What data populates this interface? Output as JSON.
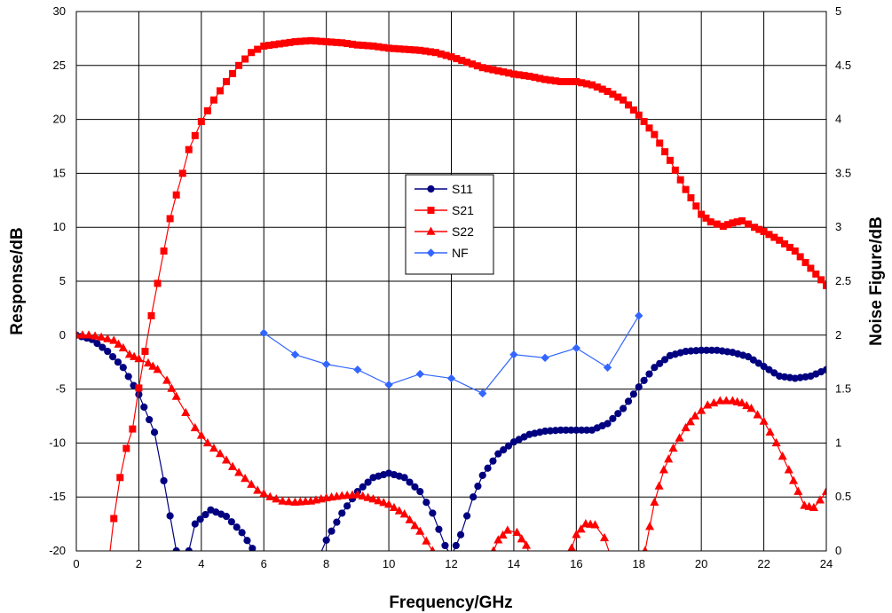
{
  "chart_data": {
    "type": "line",
    "title": "",
    "xlabel": "Frequency/GHz",
    "ylabel": "Response/dB",
    "y2label": "Noise Figure/dB",
    "xlim": [
      0,
      24
    ],
    "ylim": [
      -20,
      30
    ],
    "y2lim": [
      0,
      5
    ],
    "x_ticks": [
      "0",
      "2",
      "4",
      "6",
      "8",
      "10",
      "12",
      "14",
      "16",
      "18",
      "20",
      "22",
      "24"
    ],
    "y_ticks": [
      "-20",
      "-15",
      "-10",
      "-5",
      "0",
      "5",
      "10",
      "15",
      "20",
      "25",
      "30"
    ],
    "y2_ticks": [
      "0",
      "0.5",
      "1",
      "1.5",
      "2",
      "2.5",
      "3",
      "3.5",
      "4",
      "4.5",
      "5"
    ],
    "grid": true,
    "legend_position": "center",
    "series": [
      {
        "name": "S11",
        "axis": "left",
        "color": "#000080",
        "marker": "circle",
        "points": [
          [
            0,
            0
          ],
          [
            0.5,
            -0.4
          ],
          [
            1,
            -1.5
          ],
          [
            1.5,
            -3
          ],
          [
            2,
            -5.5
          ],
          [
            2.5,
            -9
          ],
          [
            2.8,
            -13.5
          ],
          [
            3.2,
            -20
          ],
          [
            3.3,
            -22
          ],
          [
            3.6,
            -20
          ],
          [
            3.8,
            -17.5
          ],
          [
            4.3,
            -16.2
          ],
          [
            4.8,
            -16.8
          ],
          [
            5.3,
            -18.3
          ],
          [
            5.8,
            -20.5
          ],
          [
            7.7,
            -21
          ],
          [
            8,
            -19
          ],
          [
            8.5,
            -16.5
          ],
          [
            9,
            -14.5
          ],
          [
            9.5,
            -13.2
          ],
          [
            10,
            -12.8
          ],
          [
            10.5,
            -13.2
          ],
          [
            11,
            -14.5
          ],
          [
            11.4,
            -16.5
          ],
          [
            11.8,
            -19.5
          ],
          [
            12,
            -20.5
          ],
          [
            12.3,
            -18.5
          ],
          [
            12.7,
            -15
          ],
          [
            13,
            -13
          ],
          [
            13.5,
            -11
          ],
          [
            14,
            -9.9
          ],
          [
            14.5,
            -9.2
          ],
          [
            15,
            -8.9
          ],
          [
            15.5,
            -8.8
          ],
          [
            16,
            -8.8
          ],
          [
            16.5,
            -8.8
          ],
          [
            17,
            -8.2
          ],
          [
            17.5,
            -6.8
          ],
          [
            18,
            -4.8
          ],
          [
            18.5,
            -3
          ],
          [
            19,
            -1.9
          ],
          [
            19.5,
            -1.5
          ],
          [
            20,
            -1.4
          ],
          [
            20.5,
            -1.4
          ],
          [
            21,
            -1.6
          ],
          [
            21.5,
            -2
          ],
          [
            22,
            -2.9
          ],
          [
            22.5,
            -3.8
          ],
          [
            23,
            -4
          ],
          [
            23.5,
            -3.8
          ],
          [
            24,
            -3.2
          ]
        ]
      },
      {
        "name": "S21",
        "axis": "left",
        "color": "#FF0000",
        "marker": "square",
        "points": [
          [
            1,
            -22
          ],
          [
            1.2,
            -17
          ],
          [
            1.4,
            -13.2
          ],
          [
            1.6,
            -10.5
          ],
          [
            1.8,
            -8.7
          ],
          [
            2,
            -4.9
          ],
          [
            2.2,
            -1.5
          ],
          [
            2.4,
            1.8
          ],
          [
            2.6,
            4.8
          ],
          [
            2.8,
            7.8
          ],
          [
            3,
            10.8
          ],
          [
            3.2,
            13
          ],
          [
            3.4,
            15
          ],
          [
            3.6,
            17.2
          ],
          [
            3.8,
            18.5
          ],
          [
            4,
            19.8
          ],
          [
            4.4,
            21.8
          ],
          [
            4.8,
            23.5
          ],
          [
            5.2,
            25
          ],
          [
            5.6,
            26.2
          ],
          [
            6,
            26.8
          ],
          [
            6.5,
            27
          ],
          [
            7,
            27.2
          ],
          [
            7.5,
            27.3
          ],
          [
            8,
            27.2
          ],
          [
            8.5,
            27.1
          ],
          [
            9,
            26.9
          ],
          [
            9.5,
            26.8
          ],
          [
            10,
            26.6
          ],
          [
            10.5,
            26.5
          ],
          [
            11,
            26.4
          ],
          [
            11.5,
            26.2
          ],
          [
            12,
            25.8
          ],
          [
            12.5,
            25.3
          ],
          [
            13,
            24.8
          ],
          [
            13.5,
            24.5
          ],
          [
            14,
            24.2
          ],
          [
            14.5,
            24
          ],
          [
            15,
            23.7
          ],
          [
            15.5,
            23.5
          ],
          [
            16,
            23.5
          ],
          [
            16.5,
            23.2
          ],
          [
            17,
            22.6
          ],
          [
            17.5,
            21.8
          ],
          [
            18,
            20.4
          ],
          [
            18.5,
            18.6
          ],
          [
            19,
            16.2
          ],
          [
            19.5,
            13.5
          ],
          [
            20,
            11.2
          ],
          [
            20.3,
            10.5
          ],
          [
            20.7,
            10.1
          ],
          [
            21,
            10.4
          ],
          [
            21.3,
            10.6
          ],
          [
            21.7,
            10
          ],
          [
            22,
            9.6
          ],
          [
            22.5,
            8.8
          ],
          [
            23,
            7.8
          ],
          [
            23.5,
            6.2
          ],
          [
            24,
            4.6
          ]
        ]
      },
      {
        "name": "S22",
        "axis": "left",
        "color": "#FF0000",
        "marker": "triangle",
        "points": [
          [
            0,
            0
          ],
          [
            0.4,
            0
          ],
          [
            0.8,
            -0.2
          ],
          [
            1.2,
            -0.5
          ],
          [
            1.5,
            -1.2
          ],
          [
            1.7,
            -1.8
          ],
          [
            2,
            -2.2
          ],
          [
            2.3,
            -2.6
          ],
          [
            2.6,
            -3.2
          ],
          [
            2.9,
            -4.2
          ],
          [
            3.2,
            -5.7
          ],
          [
            3.5,
            -7.2
          ],
          [
            3.8,
            -8.6
          ],
          [
            4.2,
            -10
          ],
          [
            4.6,
            -11
          ],
          [
            5,
            -12.2
          ],
          [
            5.4,
            -13.3
          ],
          [
            5.8,
            -14.4
          ],
          [
            6.2,
            -15
          ],
          [
            6.6,
            -15.4
          ],
          [
            7,
            -15.5
          ],
          [
            7.5,
            -15.4
          ],
          [
            8,
            -15.1
          ],
          [
            8.5,
            -14.9
          ],
          [
            9,
            -14.8
          ],
          [
            9.5,
            -15.2
          ],
          [
            10,
            -15.7
          ],
          [
            10.5,
            -16.6
          ],
          [
            11,
            -18.2
          ],
          [
            11.4,
            -20
          ],
          [
            11.7,
            -21.5
          ],
          [
            13.2,
            -21
          ],
          [
            13.5,
            -19
          ],
          [
            13.8,
            -18.1
          ],
          [
            14.1,
            -18.3
          ],
          [
            14.4,
            -19.5
          ],
          [
            14.6,
            -21
          ],
          [
            15.7,
            -21
          ],
          [
            16,
            -18.5
          ],
          [
            16.3,
            -17.5
          ],
          [
            16.6,
            -17.6
          ],
          [
            16.9,
            -18.8
          ],
          [
            17.1,
            -20.5
          ],
          [
            18,
            -21
          ],
          [
            18.2,
            -20
          ],
          [
            18.5,
            -15.5
          ],
          [
            18.8,
            -12.5
          ],
          [
            19.1,
            -10.5
          ],
          [
            19.5,
            -8.6
          ],
          [
            19.8,
            -7.5
          ],
          [
            20.2,
            -6.5
          ],
          [
            20.6,
            -6.1
          ],
          [
            21,
            -6.1
          ],
          [
            21.3,
            -6.3
          ],
          [
            21.6,
            -6.8
          ],
          [
            22,
            -8
          ],
          [
            22.4,
            -10
          ],
          [
            22.8,
            -12.5
          ],
          [
            23.1,
            -14.5
          ],
          [
            23.3,
            -15.8
          ],
          [
            23.6,
            -16
          ],
          [
            23.8,
            -15.3
          ],
          [
            24,
            -14.5
          ]
        ]
      },
      {
        "name": "NF",
        "axis": "right",
        "color": "#3366FF",
        "marker": "diamond",
        "points": [
          [
            6,
            2.02
          ],
          [
            7,
            1.82
          ],
          [
            8,
            1.73
          ],
          [
            9,
            1.68
          ],
          [
            10,
            1.54
          ],
          [
            11,
            1.64
          ],
          [
            12,
            1.6
          ],
          [
            13,
            1.46
          ],
          [
            14,
            1.82
          ],
          [
            15,
            1.79
          ],
          [
            16,
            1.88
          ],
          [
            17,
            1.7
          ],
          [
            18,
            2.18
          ]
        ]
      }
    ]
  }
}
